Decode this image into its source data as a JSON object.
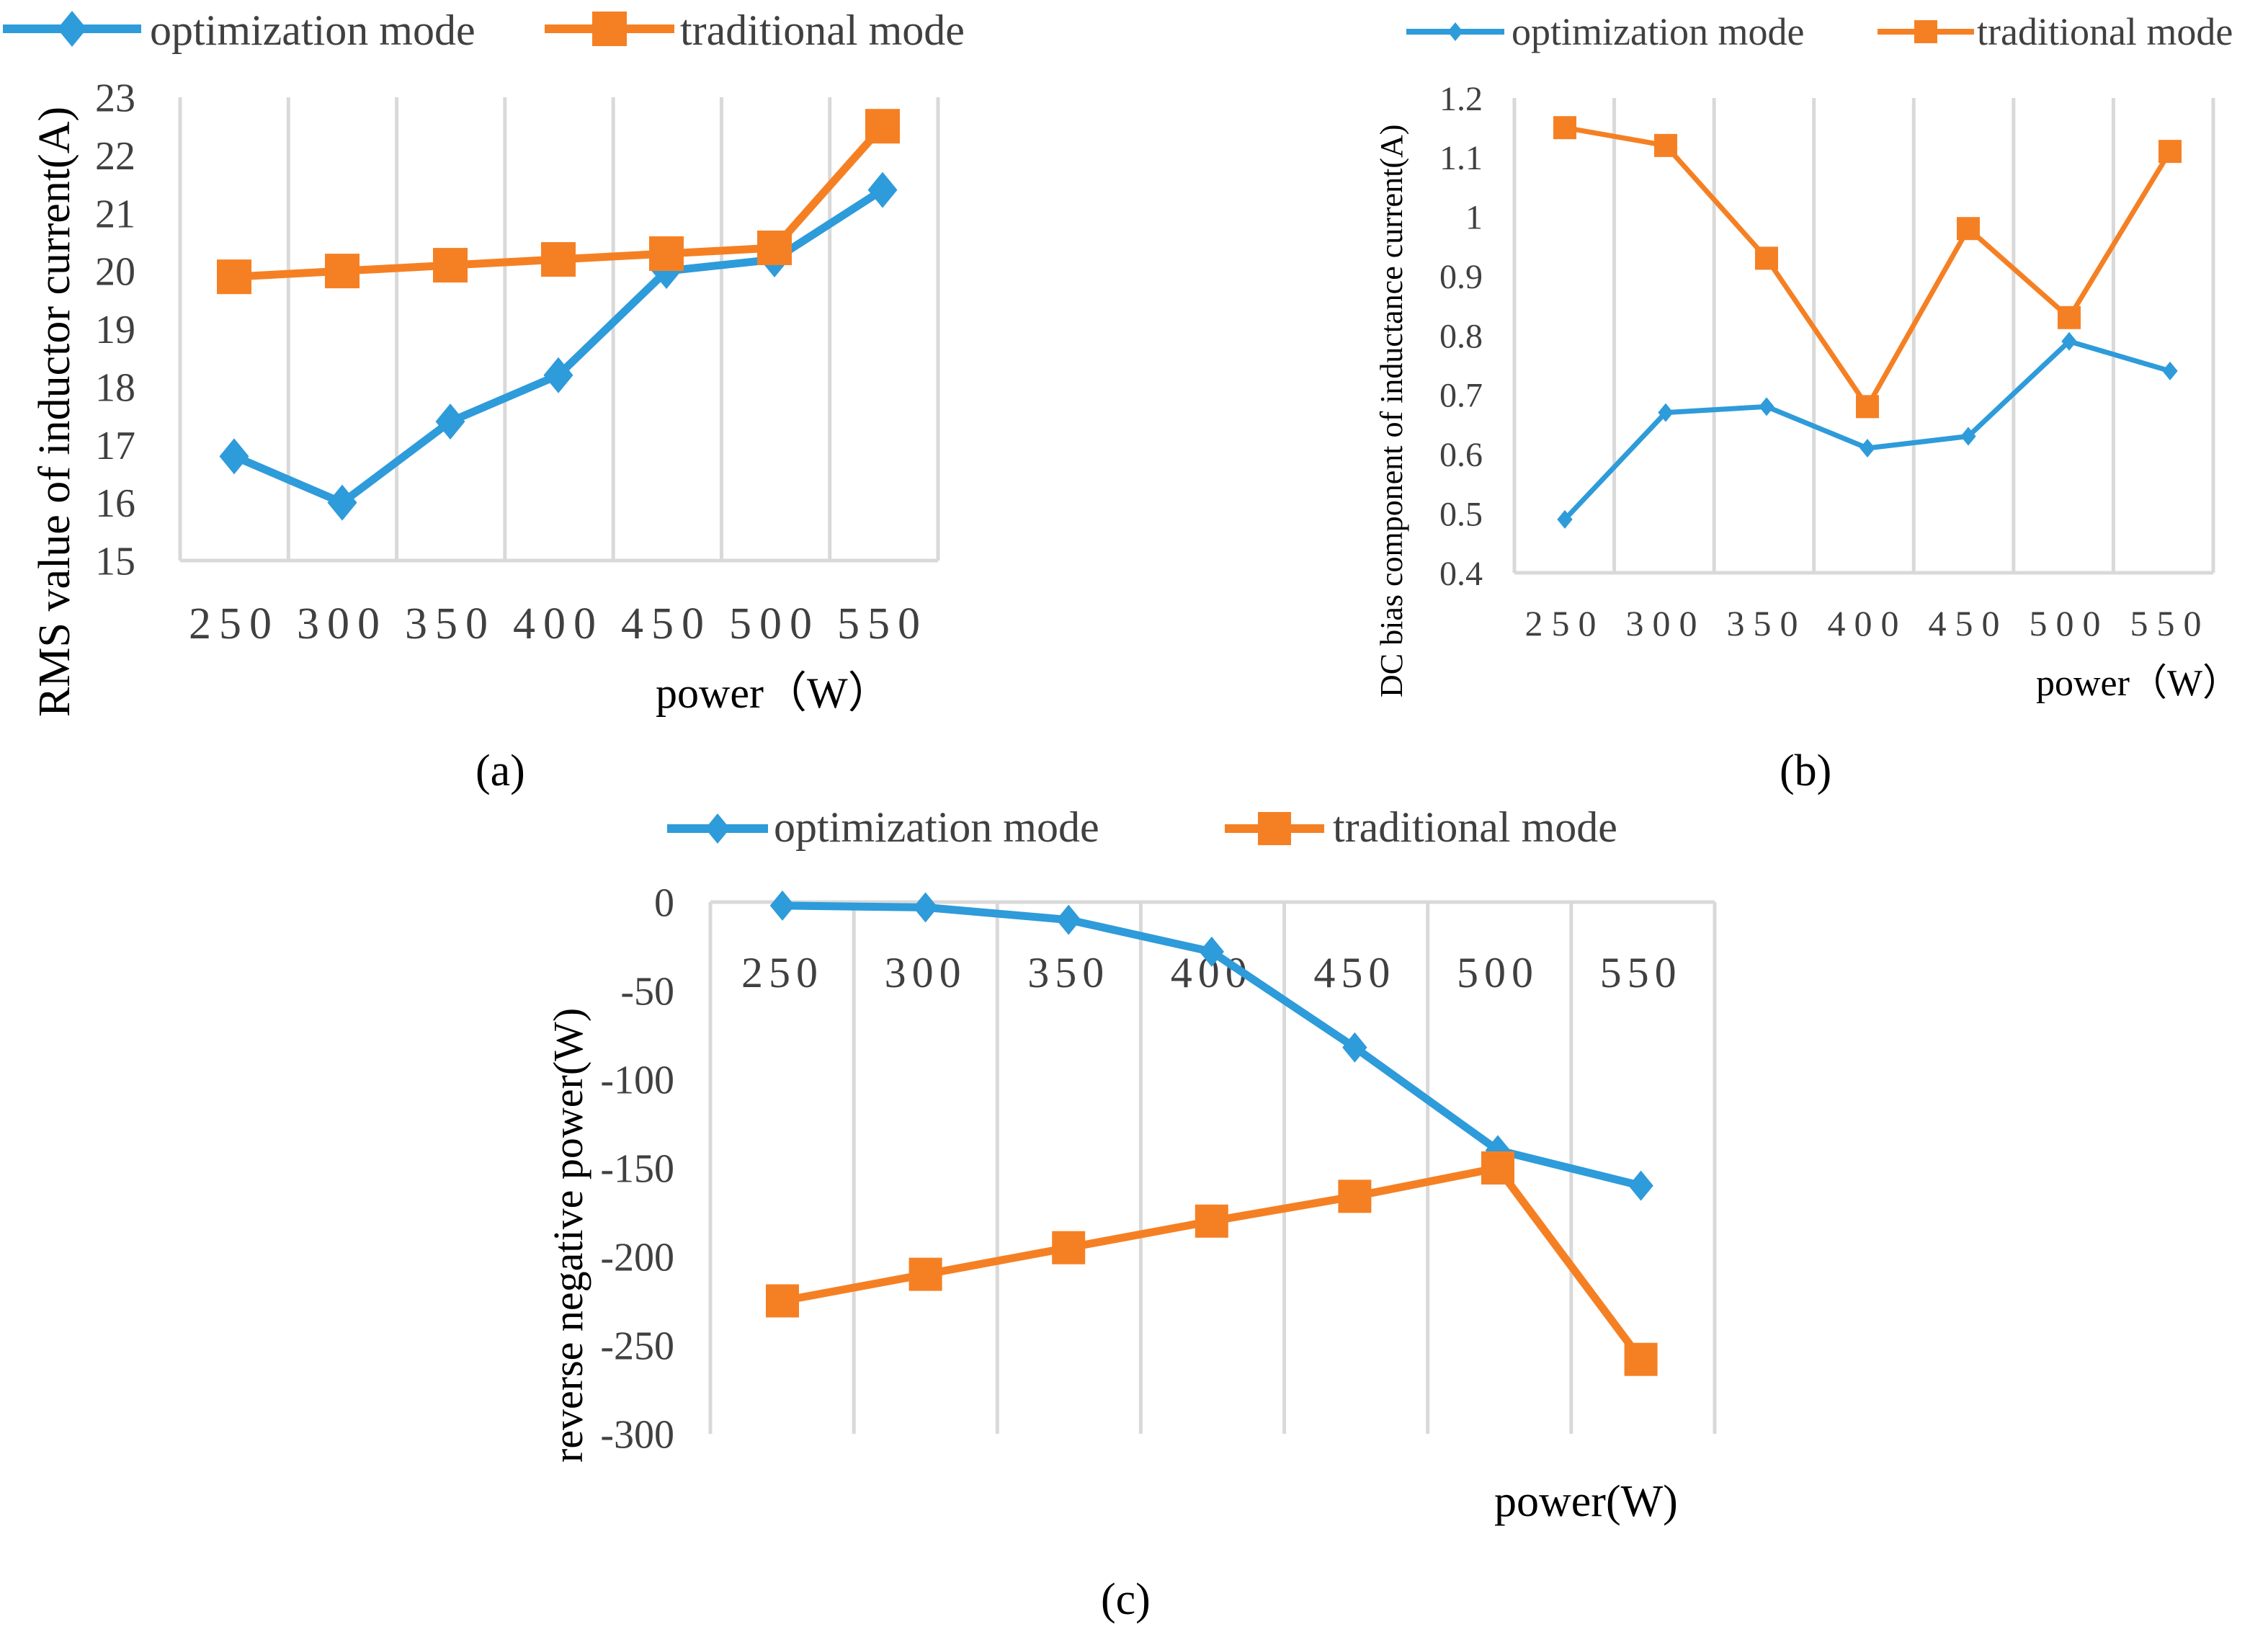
{
  "chart_data": [
    {
      "id": "a",
      "type": "line",
      "panel_label": "(a)",
      "categories": [
        "250",
        "300",
        "350",
        "400",
        "450",
        "500",
        "550"
      ],
      "ylabel": "RMS value of inductor current(A)",
      "xlabel": "power（W）",
      "ylim": [
        15,
        23
      ],
      "yticks": [
        "15",
        "16",
        "17",
        "18",
        "19",
        "20",
        "21",
        "22",
        "23"
      ],
      "series": [
        {
          "name": "optimization mode",
          "color": "#2E9BDA",
          "marker": "diamond",
          "values": [
            16.8,
            16.0,
            17.4,
            18.2,
            20.0,
            20.2,
            21.4
          ]
        },
        {
          "name": "traditional mode",
          "color": "#F58024",
          "marker": "square",
          "values": [
            19.9,
            20.0,
            20.1,
            20.2,
            20.3,
            20.4,
            22.5
          ]
        }
      ]
    },
    {
      "id": "b",
      "type": "line",
      "panel_label": "(b)",
      "categories": [
        "250",
        "300",
        "350",
        "400",
        "450",
        "500",
        "550"
      ],
      "ylabel": "DC bias component of inductance current(A)",
      "xlabel": "power（W）",
      "ylim": [
        0.4,
        1.2
      ],
      "yticks": [
        "0.4",
        "0.5",
        "0.6",
        "0.7",
        "0.8",
        "0.9",
        "1",
        "1.1",
        "1.2"
      ],
      "series": [
        {
          "name": "optimization mode",
          "color": "#2E9BDA",
          "marker": "diamond",
          "values": [
            0.49,
            0.67,
            0.68,
            0.61,
            0.63,
            0.79,
            0.74
          ]
        },
        {
          "name": "traditional mode",
          "color": "#F58024",
          "marker": "square",
          "values": [
            1.15,
            1.12,
            0.93,
            0.68,
            0.98,
            0.83,
            1.11
          ]
        }
      ]
    },
    {
      "id": "c",
      "type": "line",
      "panel_label": "(c)",
      "categories": [
        "250",
        "300",
        "350",
        "400",
        "450",
        "500",
        "550"
      ],
      "ylabel": "reverse negative power(W)",
      "xlabel": "power(W)",
      "ylim": [
        -300,
        0
      ],
      "yticks": [
        "0",
        "-50",
        "-100",
        "-150",
        "-200",
        "-250",
        "-300"
      ],
      "series": [
        {
          "name": "optimization mode",
          "color": "#2E9BDA",
          "marker": "diamond",
          "values": [
            -2,
            -3,
            -10,
            -28,
            -82,
            -140,
            -160
          ]
        },
        {
          "name": "traditional mode",
          "color": "#F58024",
          "marker": "square",
          "values": [
            -225,
            -210,
            -195,
            -180,
            -166,
            -150,
            -258
          ]
        }
      ]
    }
  ]
}
